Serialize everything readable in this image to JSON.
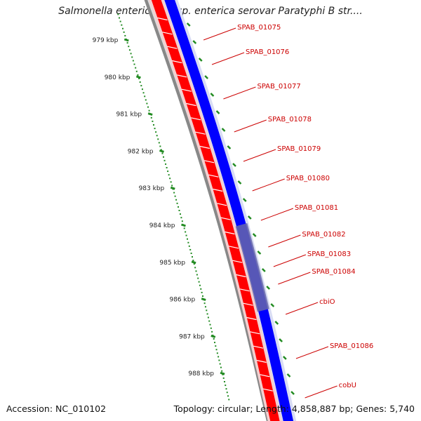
{
  "title": "Salmonella enterica subsp. enterica serovar Paratyphi B str....",
  "footer": {
    "accession_label": "Accession:",
    "accession": "NC_010102",
    "topology_label": "Topology:",
    "topology": "circular;",
    "length_label": "Length:",
    "length": "4,858,887 bp;",
    "genes_label": "Genes:",
    "genes": "5,740"
  },
  "colors": {
    "forward_strand": "#ff0000",
    "reverse_strand": "#0000ff",
    "highlight": "#6666aa",
    "backbone": "#888888",
    "ruler": "#228b22",
    "label": "#cc0000"
  },
  "ruler": {
    "ticks": [
      "979 kbp",
      "980 kbp",
      "981 kbp",
      "982 kbp",
      "983 kbp",
      "984 kbp",
      "985 kbp",
      "986 kbp",
      "987 kbp",
      "988 kbp"
    ]
  },
  "genes": [
    {
      "name": "SPAB_01075"
    },
    {
      "name": "SPAB_01076"
    },
    {
      "name": "SPAB_01077"
    },
    {
      "name": "SPAB_01078"
    },
    {
      "name": "SPAB_01079"
    },
    {
      "name": "SPAB_01080"
    },
    {
      "name": "SPAB_01081"
    },
    {
      "name": "SPAB_01082"
    },
    {
      "name": "SPAB_01083"
    },
    {
      "name": "SPAB_01084"
    },
    {
      "name": "cbiO"
    },
    {
      "name": "SPAB_01086"
    },
    {
      "name": "cobU"
    }
  ]
}
